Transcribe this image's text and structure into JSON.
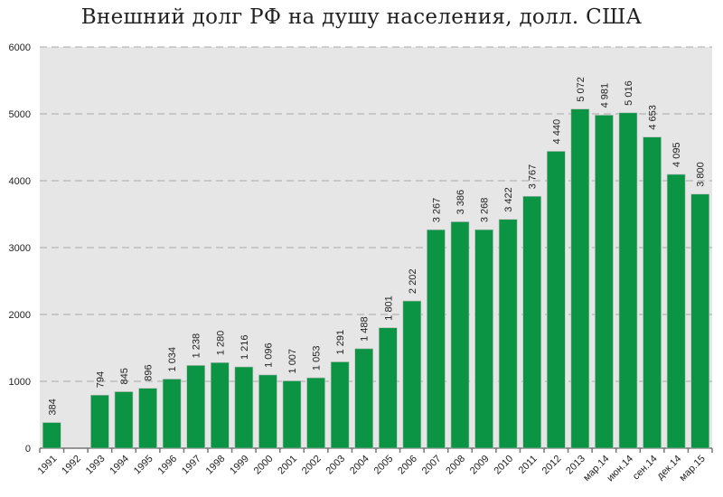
{
  "chart_data": {
    "type": "bar",
    "title": "Внешний долг РФ на душу населения, долл. США",
    "xlabel": "",
    "ylabel": "",
    "ylim": [
      0,
      6000
    ],
    "yticks": [
      0,
      1000,
      2000,
      3000,
      4000,
      5000,
      6000
    ],
    "grid": true,
    "bar_color": "#0a9444",
    "plot_background": "#e6e6e6",
    "categories": [
      "1991",
      "1992",
      "1993",
      "1994",
      "1995",
      "1996",
      "1997",
      "1998",
      "1999",
      "2000",
      "2001",
      "2002",
      "2003",
      "2004",
      "2005",
      "2006",
      "2007",
      "2008",
      "2009",
      "2010",
      "2011",
      "2012",
      "2013",
      "мар.14",
      "июн.14",
      "сен.14",
      "дек.14",
      "мар.15"
    ],
    "values": [
      384,
      null,
      794,
      845,
      896,
      1034,
      1238,
      1280,
      1216,
      1096,
      1007,
      1053,
      1291,
      1488,
      1801,
      2202,
      3267,
      3386,
      3268,
      3422,
      3767,
      4440,
      5072,
      4981,
      5016,
      4653,
      4095,
      3800
    ],
    "data_labels": [
      "384",
      "",
      "794",
      "845",
      "896",
      "1 034",
      "1 238",
      "1 280",
      "1 216",
      "1 096",
      "1 007",
      "1 053",
      "1 291",
      "1 488",
      "1 801",
      "2 202",
      "3 267",
      "3 386",
      "3 268",
      "3 422",
      "3 767",
      "4 440",
      "5 072",
      "4 981",
      "5 016",
      "4 653",
      "4 095",
      "3 800"
    ]
  }
}
